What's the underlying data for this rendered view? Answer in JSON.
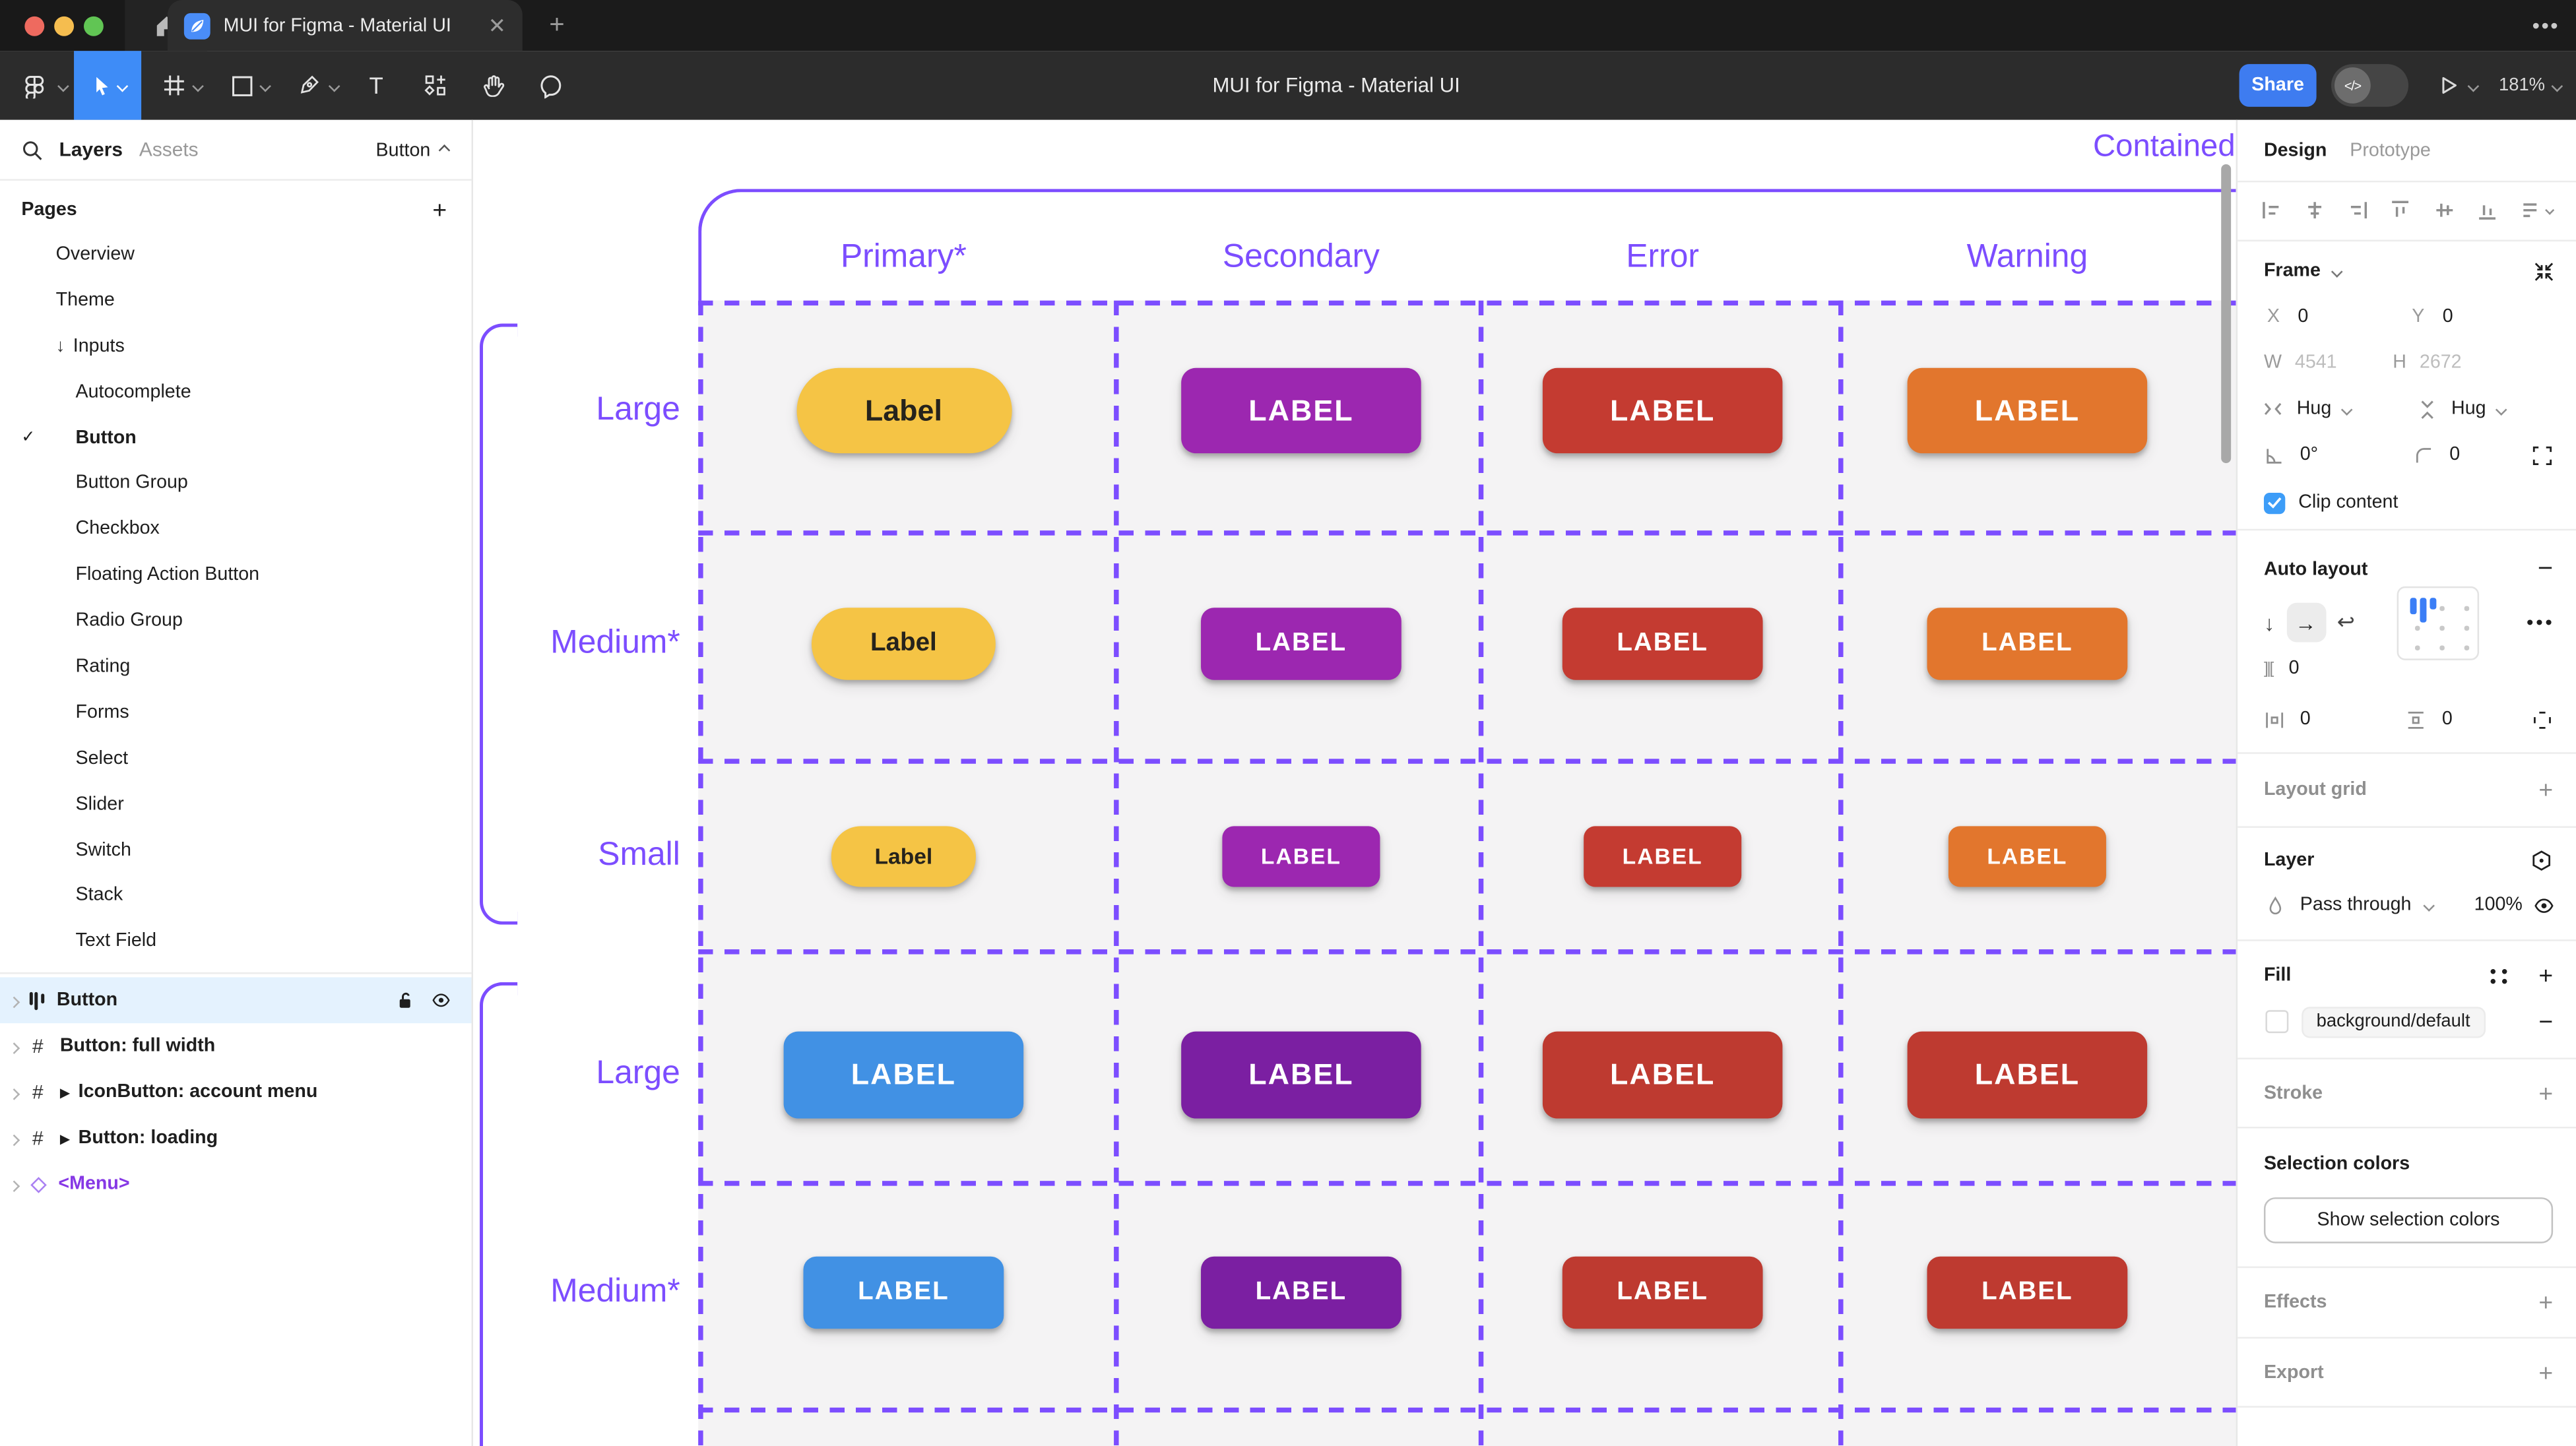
{
  "window": {
    "tab_title": "MUI for Figma - Material UI",
    "traffic_colors": [
      "#ee6a5f",
      "#f5bd4f",
      "#61c554"
    ]
  },
  "toolbar": {
    "title": "MUI for Figma - Material UI",
    "share_label": "Share",
    "zoom_level": "181%"
  },
  "left_panel": {
    "tabs": {
      "layers": "Layers",
      "assets": "Assets"
    },
    "page_indicator": "Button",
    "pages_header": "Pages",
    "pages": [
      {
        "label": "Overview",
        "indent": 1
      },
      {
        "label": "Theme",
        "indent": 1
      },
      {
        "label": "Inputs",
        "indent": 1,
        "arrow": true
      },
      {
        "label": "Autocomplete",
        "indent": 2
      },
      {
        "label": "Button",
        "indent": 2,
        "active": true
      },
      {
        "label": "Button Group",
        "indent": 2
      },
      {
        "label": "Checkbox",
        "indent": 2
      },
      {
        "label": "Floating Action Button",
        "indent": 2
      },
      {
        "label": "Radio Group",
        "indent": 2
      },
      {
        "label": "Rating",
        "indent": 2
      },
      {
        "label": "Forms",
        "indent": 2
      },
      {
        "label": "Select",
        "indent": 2
      },
      {
        "label": "Slider",
        "indent": 2
      },
      {
        "label": "Switch",
        "indent": 2
      },
      {
        "label": "Stack",
        "indent": 2
      },
      {
        "label": "Text Field",
        "indent": 2
      }
    ],
    "layers": [
      {
        "label": "Button",
        "icon": "autolayout",
        "selected": true
      },
      {
        "label": "Button: full width",
        "icon": "frame"
      },
      {
        "label": "IconButton: account menu",
        "icon": "frame",
        "component": true
      },
      {
        "label": "Button: loading",
        "icon": "frame",
        "component": true
      },
      {
        "label": "<Menu>",
        "icon": "instance",
        "purple": true
      }
    ]
  },
  "right_panel": {
    "tabs": {
      "design": "Design",
      "prototype": "Prototype"
    },
    "frame": {
      "title": "Frame",
      "x_label": "X",
      "x_value": "0",
      "y_label": "Y",
      "y_value": "0",
      "w_label": "W",
      "w_value": "4541",
      "h_label": "H",
      "h_value": "2672",
      "hug_h": "Hug",
      "hug_v": "Hug",
      "rotation": "0°",
      "corner_radius": "0",
      "clip_label": "Clip content"
    },
    "auto_layout": {
      "title": "Auto layout",
      "gap": "0",
      "padding_h": "0",
      "padding_v": "0"
    },
    "layout_grid": {
      "title": "Layout grid"
    },
    "layer": {
      "title": "Layer",
      "blend_mode": "Pass through",
      "opacity": "100%"
    },
    "fill": {
      "title": "Fill",
      "style_name": "background/default"
    },
    "stroke": {
      "title": "Stroke"
    },
    "selection_colors": {
      "title": "Selection colors",
      "button_label": "Show selection colors"
    },
    "effects": {
      "title": "Effects"
    },
    "export": {
      "title": "Export"
    }
  },
  "canvas": {
    "frame_name": "Contained",
    "column_headers": [
      "Primary*",
      "Secondary",
      "Error",
      "Warning"
    ],
    "row_labels": [
      "Large",
      "Medium*",
      "Small",
      "Large",
      "Medium*"
    ],
    "accent_purple": "#7c4dff",
    "buttons": [
      {
        "row": 0,
        "col": 0,
        "label": "Label",
        "bg": "#f5c445",
        "fg": "#26231c",
        "pill": true
      },
      {
        "row": 0,
        "col": 1,
        "label": "LABEL",
        "bg": "#9c27b0",
        "fg": "#ffffff"
      },
      {
        "row": 0,
        "col": 2,
        "label": "LABEL",
        "bg": "#c43b31",
        "fg": "#ffffff"
      },
      {
        "row": 0,
        "col": 3,
        "label": "LABEL",
        "bg": "#e2762d",
        "fg": "#ffffff"
      },
      {
        "row": 1,
        "col": 0,
        "label": "Label",
        "bg": "#f5c445",
        "fg": "#26231c",
        "pill": true
      },
      {
        "row": 1,
        "col": 1,
        "label": "LABEL",
        "bg": "#9c27b0",
        "fg": "#ffffff"
      },
      {
        "row": 1,
        "col": 2,
        "label": "LABEL",
        "bg": "#c43b31",
        "fg": "#ffffff"
      },
      {
        "row": 1,
        "col": 3,
        "label": "LABEL",
        "bg": "#e2762d",
        "fg": "#ffffff"
      },
      {
        "row": 2,
        "col": 0,
        "label": "Label",
        "bg": "#f5c445",
        "fg": "#26231c",
        "pill": true
      },
      {
        "row": 2,
        "col": 1,
        "label": "LABEL",
        "bg": "#9c27b0",
        "fg": "#ffffff"
      },
      {
        "row": 2,
        "col": 2,
        "label": "LABEL",
        "bg": "#c43b31",
        "fg": "#ffffff"
      },
      {
        "row": 2,
        "col": 3,
        "label": "LABEL",
        "bg": "#e2762d",
        "fg": "#ffffff"
      },
      {
        "row": 3,
        "col": 0,
        "label": "LABEL",
        "bg": "#4191e4",
        "fg": "#ffffff"
      },
      {
        "row": 3,
        "col": 1,
        "label": "LABEL",
        "bg": "#7b1fa2",
        "fg": "#ffffff"
      },
      {
        "row": 3,
        "col": 2,
        "label": "LABEL",
        "bg": "#be3a30",
        "fg": "#ffffff"
      },
      {
        "row": 3,
        "col": 3,
        "label": "LABEL",
        "bg": "#be3a30",
        "fg": "#ffffff"
      },
      {
        "row": 4,
        "col": 0,
        "label": "LABEL",
        "bg": "#4191e4",
        "fg": "#ffffff"
      },
      {
        "row": 4,
        "col": 1,
        "label": "LABEL",
        "bg": "#7b1fa2",
        "fg": "#ffffff"
      },
      {
        "row": 4,
        "col": 2,
        "label": "LABEL",
        "bg": "#be3a30",
        "fg": "#ffffff"
      },
      {
        "row": 4,
        "col": 3,
        "label": "LABEL",
        "bg": "#be3a30",
        "fg": "#ffffff"
      }
    ]
  }
}
